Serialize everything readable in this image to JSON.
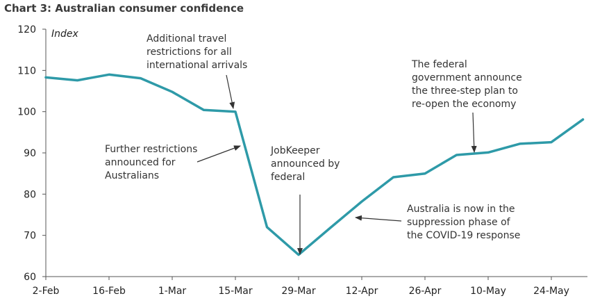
{
  "title": "Chart 3:  Australian consumer confidence",
  "chart_data": {
    "type": "line",
    "title": "Chart 3:  Australian consumer confidence",
    "ylabel": "Index",
    "xlabel": "",
    "ylim": [
      60,
      120
    ],
    "yticks": [
      60,
      70,
      80,
      90,
      100,
      110,
      120
    ],
    "xticks": [
      "2-Feb",
      "16-Feb",
      "1-Mar",
      "15-Mar",
      "29-Mar",
      "12-Apr",
      "26-Apr",
      "10-May",
      "24-May"
    ],
    "grid": false,
    "line_color": "#2E9AA8",
    "series": [
      {
        "x": [
          "2-Feb",
          "9-Feb",
          "16-Feb",
          "23-Feb",
          "1-Mar",
          "8-Mar",
          "15-Mar",
          "22-Mar",
          "29-Mar",
          "5-Apr",
          "12-Apr",
          "19-Apr",
          "26-Apr",
          "3-May",
          "10-May",
          "17-May",
          "24-May",
          "31-May"
        ],
        "values": [
          108.3,
          107.6,
          109.0,
          108.1,
          104.8,
          100.4,
          100.0,
          72.0,
          65.3,
          71.8,
          78.2,
          84.1,
          85.0,
          89.5,
          90.1,
          92.2,
          92.6,
          98.1
        ]
      }
    ],
    "annotations": [
      {
        "lines": [
          "Additional travel",
          "restrictions for all",
          "international arrivals"
        ],
        "target": "15-Mar"
      },
      {
        "lines": [
          "Further restrictions",
          "announced for",
          "Australians"
        ],
        "target": "15-Mar"
      },
      {
        "lines": [
          "JobKeeper",
          "announced by",
          "federal"
        ],
        "target": "29-Mar"
      },
      {
        "lines": [
          "The federal",
          "government announce",
          "the three-step plan to",
          "re-open the economy"
        ],
        "target": "10-May"
      },
      {
        "lines": [
          "Australia is now in the",
          "suppression phase of",
          "the COVID-19 response"
        ],
        "target": "12-Apr"
      }
    ]
  }
}
